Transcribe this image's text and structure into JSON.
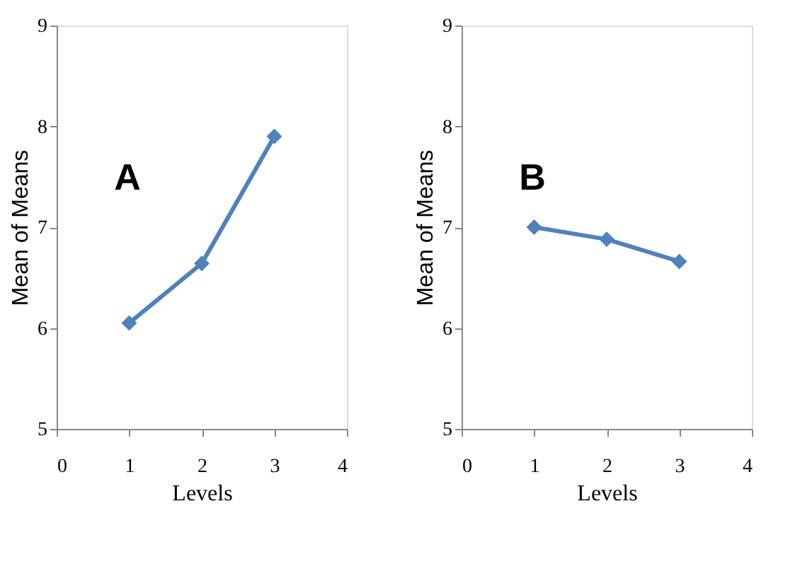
{
  "chart_data": [
    {
      "type": "line",
      "x": [
        1,
        2,
        3
      ],
      "xlabel": "Levels",
      "ylabel": "Mean of Means",
      "annotations": [
        "A"
      ],
      "series": [
        {
          "color": "#4f81bd",
          "values": [
            6.05,
            6.64,
            7.9
          ]
        }
      ],
      "xlim": [
        0,
        4
      ],
      "xticks": [
        0,
        1,
        2,
        3,
        4
      ],
      "ylim": [
        5,
        9
      ],
      "yticks": [
        5,
        6,
        7,
        8,
        9
      ],
      "grid": false,
      "marker": "diamond",
      "line_style": "solid"
    },
    {
      "type": "line",
      "x": [
        1,
        2,
        3
      ],
      "xlabel": "Levels",
      "ylabel": "Mean of Means",
      "annotations": [
        "B"
      ],
      "series": [
        {
          "color": "#4f81bd",
          "values": [
            7.0,
            6.88,
            6.66
          ]
        }
      ],
      "xlim": [
        0,
        4
      ],
      "xticks": [
        0,
        1,
        2,
        3,
        4
      ],
      "ylim": [
        5,
        9
      ],
      "yticks": [
        5,
        6,
        7,
        8,
        9
      ],
      "grid": false,
      "marker": "diamond",
      "line_style": "solid"
    }
  ]
}
